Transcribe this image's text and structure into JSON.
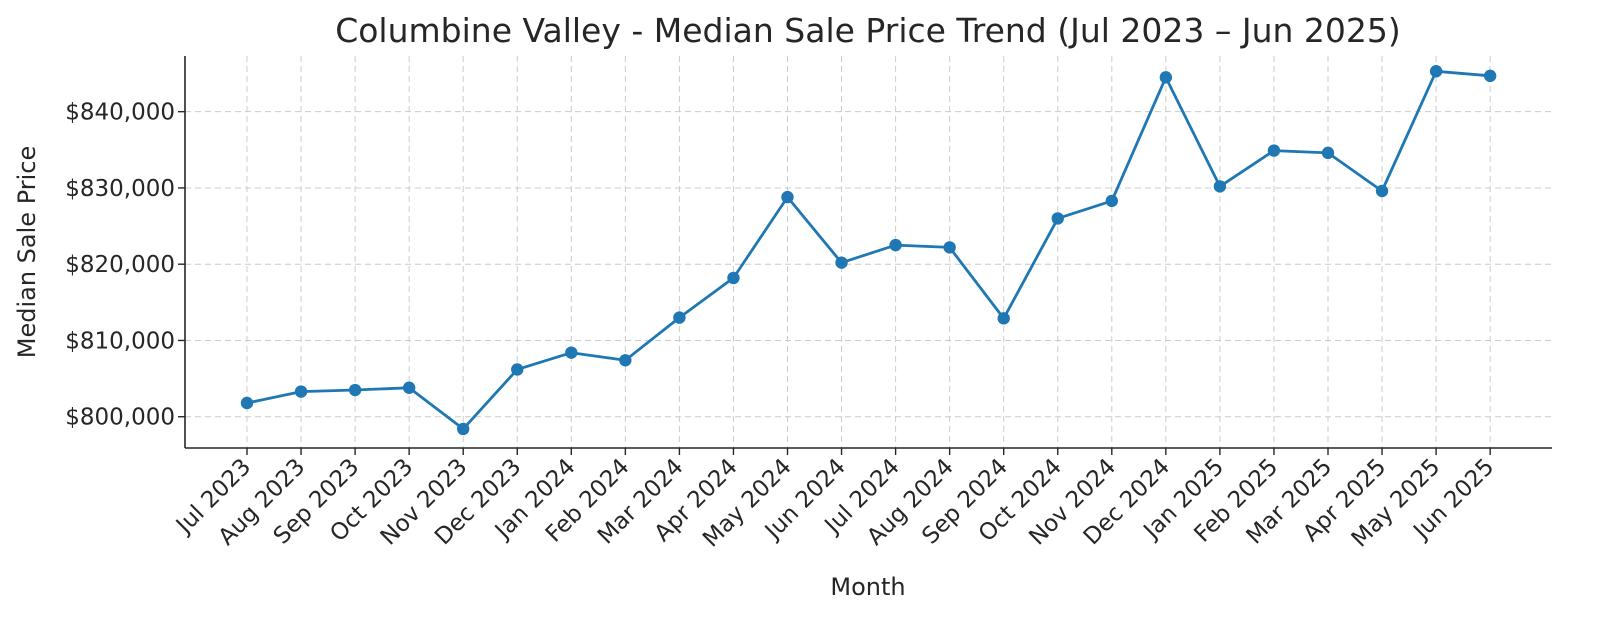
{
  "chart_data": {
    "type": "line",
    "title": "Columbine Valley - Median Sale Price Trend (Jul 2023 – Jun 2025)",
    "xlabel": "Month",
    "ylabel": "Median Sale Price",
    "categories": [
      "Jul 2023",
      "Aug 2023",
      "Sep 2023",
      "Oct 2023",
      "Nov 2023",
      "Dec 2023",
      "Jan 2024",
      "Feb 2024",
      "Mar 2024",
      "Apr 2024",
      "May 2024",
      "Jun 2024",
      "Jul 2024",
      "Aug 2024",
      "Sep 2024",
      "Oct 2024",
      "Nov 2024",
      "Dec 2024",
      "Jan 2025",
      "Feb 2025",
      "Mar 2025",
      "Apr 2025",
      "May 2025",
      "Jun 2025"
    ],
    "series": [
      {
        "values": [
          801800,
          803300,
          803500,
          803800,
          798400,
          806200,
          808400,
          807400,
          813000,
          818200,
          828800,
          820200,
          822500,
          822200,
          812900,
          826000,
          828300,
          844500,
          830200,
          834900,
          834600,
          829600,
          845300,
          844700
        ],
        "color": "#1f77b4"
      }
    ],
    "yticks": [
      800000,
      810000,
      820000,
      830000,
      840000
    ],
    "ytick_labels": [
      "$800,000",
      "$810,000",
      "$820,000",
      "$830,000",
      "$840,000"
    ],
    "ylim": [
      795900,
      847300
    ],
    "grid": true,
    "marker": "circle"
  }
}
